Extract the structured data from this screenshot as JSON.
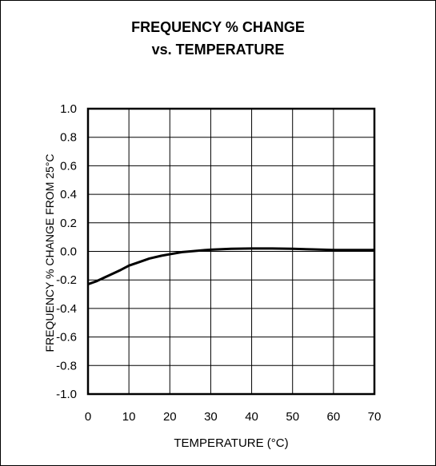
{
  "chart_data": {
    "type": "line",
    "title": "FREQUENCY % CHANGE",
    "subtitle": "vs. TEMPERATURE",
    "xlabel": "TEMPERATURE (°C)",
    "ylabel": "FREQUENCY % CHANGE FROM 25°C",
    "xlim": [
      0,
      70
    ],
    "ylim": [
      -1.0,
      1.0
    ],
    "xticks": [
      "0",
      "10",
      "20",
      "30",
      "40",
      "50",
      "60",
      "70"
    ],
    "yticks": [
      "1.0",
      "0.8",
      "0.6",
      "0.4",
      "0.2",
      "0.0",
      "-0.2",
      "-0.4",
      "-0.6",
      "-0.8",
      "-1.0"
    ],
    "grid": true,
    "line_color": "#000000",
    "series": [
      {
        "x": [
          0,
          2,
          5,
          8,
          10,
          12,
          15,
          18,
          20,
          23,
          25,
          28,
          30,
          35,
          40,
          45,
          50,
          55,
          60,
          65,
          70
        ],
        "y": [
          -0.23,
          -0.21,
          -0.17,
          -0.13,
          -0.1,
          -0.08,
          -0.05,
          -0.03,
          -0.02,
          -0.005,
          0.0,
          0.008,
          0.012,
          0.018,
          0.02,
          0.02,
          0.018,
          0.014,
          0.01,
          0.01,
          0.01
        ]
      }
    ]
  }
}
